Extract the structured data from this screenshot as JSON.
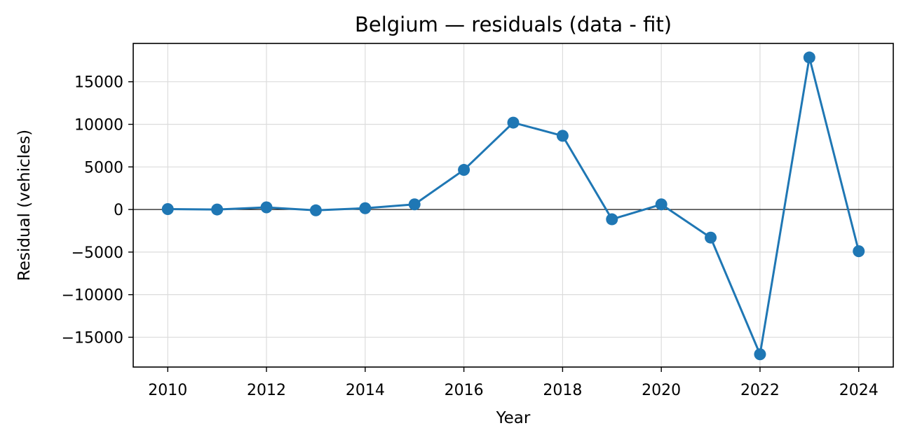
{
  "chart_data": {
    "type": "line",
    "title": "Belgium — residuals (data - fit)",
    "xlabel": "Year",
    "ylabel": "Residual (vehicles)",
    "x": [
      2010,
      2011,
      2012,
      2013,
      2014,
      2015,
      2016,
      2017,
      2018,
      2019,
      2020,
      2021,
      2022,
      2023,
      2024
    ],
    "series": [
      {
        "values": [
          50,
          0,
          250,
          -100,
          150,
          600,
          4650,
          10200,
          8650,
          -1150,
          600,
          -3300,
          -17000,
          17850,
          -4900
        ],
        "color": "#1f77b4"
      }
    ],
    "xlim": [
      2009.3,
      2024.7
    ],
    "ylim": [
      -18500,
      19500
    ],
    "xticks": [
      2010,
      2012,
      2014,
      2016,
      2018,
      2020,
      2022,
      2024
    ],
    "xtick_labels": [
      "2010",
      "2012",
      "2014",
      "2016",
      "2018",
      "2020",
      "2022",
      "2024"
    ],
    "yticks": [
      -15000,
      -10000,
      -5000,
      0,
      5000,
      10000,
      15000
    ],
    "ytick_labels": [
      "−15000",
      "−10000",
      "−5000",
      "0",
      "5000",
      "10000",
      "15000"
    ],
    "grid": true,
    "zero_line": true,
    "marker": "circle",
    "legend": "none"
  }
}
